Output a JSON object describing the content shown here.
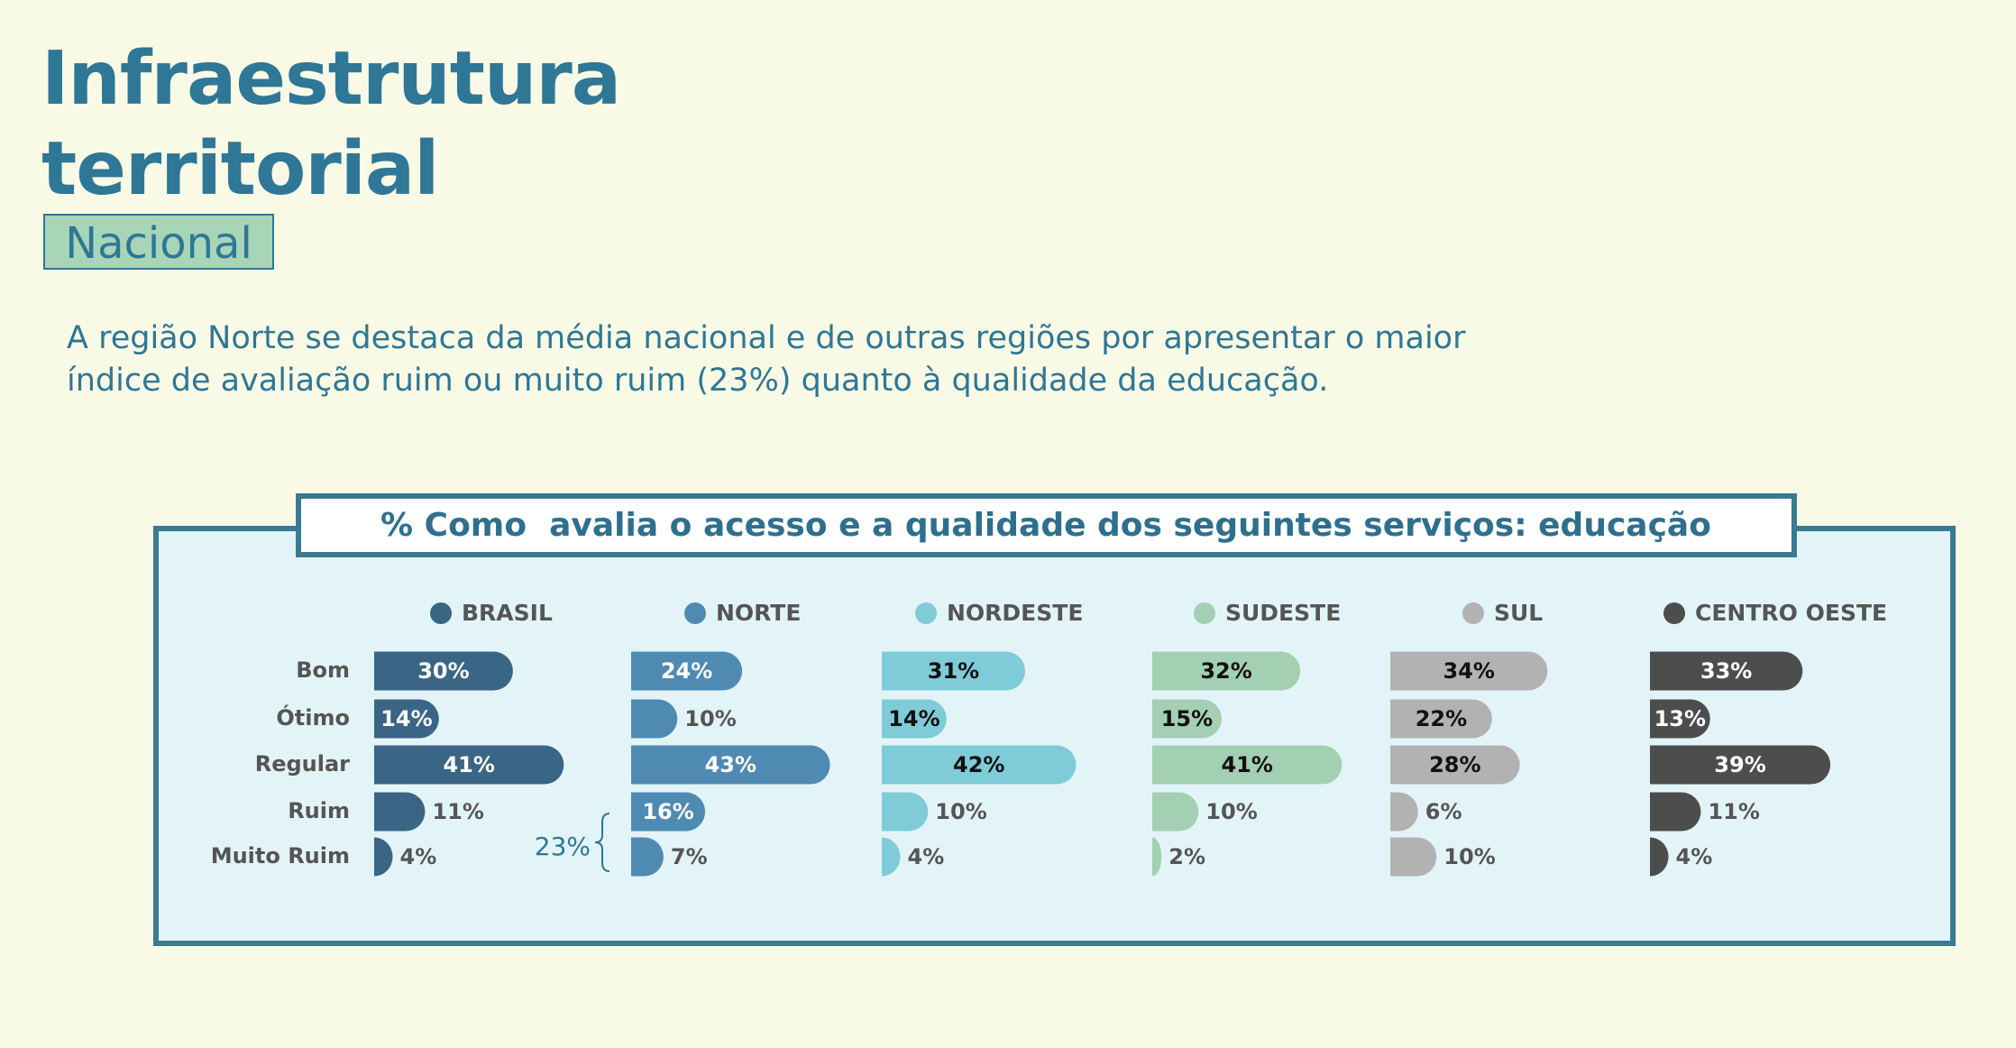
{
  "header": {
    "title": "Infraestrutura territorial",
    "tag": "Nacional",
    "text": "A região Norte se destaca da média nacional e de outras regiões por apresentar o maior índice de avaliação ruim ou muito ruim (23%) quanto à qualidade da educação."
  },
  "chart_data": {
    "type": "bar",
    "orientation": "horizontal",
    "title": "% Como  avalia o acesso e a qualidade dos seguintes serviços: educação",
    "categories": [
      "Bom",
      "Ótimo",
      "Regular",
      "Ruim",
      "Muito Ruim"
    ],
    "series": [
      {
        "name": "BRASIL",
        "color": "#3a6585",
        "values": [
          30,
          14,
          41,
          11,
          4
        ],
        "value_labels": [
          "30%",
          "14%",
          "41%",
          "11%",
          "4%"
        ]
      },
      {
        "name": "NORTE",
        "color": "#4f8ab3",
        "values": [
          24,
          10,
          43,
          16,
          7
        ],
        "value_labels": [
          "24%",
          "10%",
          "43%",
          "16%",
          "7%"
        ]
      },
      {
        "name": "NORDESTE",
        "color": "#7fcbd8",
        "values": [
          31,
          14,
          42,
          10,
          4
        ],
        "value_labels": [
          "31%",
          "14%",
          "42%",
          "10%",
          "4%"
        ]
      },
      {
        "name": "SUDESTE",
        "color": "#a3cfb3",
        "values": [
          32,
          15,
          41,
          10,
          2
        ],
        "value_labels": [
          "32%",
          "15%",
          "41%",
          "10%",
          "2%"
        ]
      },
      {
        "name": "SUL",
        "color": "#b2b2b2",
        "values": [
          34,
          22,
          28,
          6,
          10
        ],
        "value_labels": [
          "34%",
          "22%",
          "28%",
          "6%",
          "10%"
        ]
      },
      {
        "name": "CENTRO OESTE",
        "color": "#4d4d4d",
        "values": [
          33,
          13,
          39,
          11,
          4
        ],
        "value_labels": [
          "33%",
          "13%",
          "39%",
          "11%",
          "4%"
        ]
      }
    ],
    "annotation": "23%"
  }
}
